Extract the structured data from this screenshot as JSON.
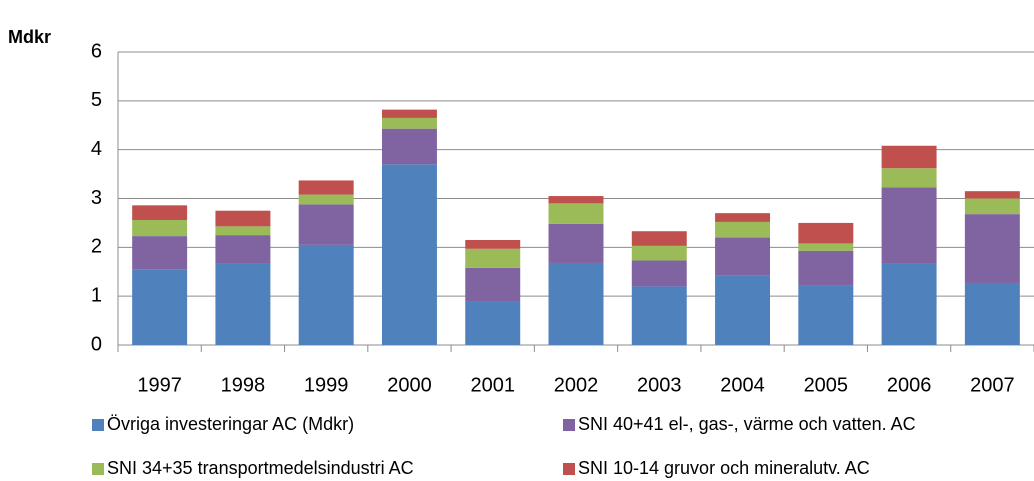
{
  "chart_data": {
    "type": "stacked_bar",
    "y_label": "Mdkr",
    "categories": [
      "1997",
      "1998",
      "1999",
      "2000",
      "2001",
      "2002",
      "2003",
      "2004",
      "2005",
      "2006",
      "2007"
    ],
    "series": [
      {
        "name": "Övriga investeringar AC (Mdkr)",
        "color": "#4f81bd",
        "values": [
          1.55,
          1.67,
          2.05,
          3.7,
          0.9,
          1.68,
          1.2,
          1.42,
          1.22,
          1.67,
          1.27
        ]
      },
      {
        "name": "SNI 40+41 el-, gas-, värme och vatten. AC",
        "color": "#8064a2",
        "values": [
          0.68,
          0.58,
          0.83,
          0.73,
          0.68,
          0.8,
          0.53,
          0.78,
          0.71,
          1.56,
          1.41
        ]
      },
      {
        "name": "SNI 34+35 transportmedelsindustri AC",
        "color": "#9bbb59",
        "values": [
          0.33,
          0.18,
          0.2,
          0.22,
          0.39,
          0.42,
          0.3,
          0.32,
          0.15,
          0.39,
          0.32
        ]
      },
      {
        "name": "SNI 10-14 gruvor och mineralutv. AC",
        "color": "#c0504d",
        "values": [
          0.3,
          0.32,
          0.29,
          0.17,
          0.18,
          0.15,
          0.3,
          0.18,
          0.42,
          0.46,
          0.15
        ]
      }
    ],
    "ylim": [
      0,
      6
    ],
    "yticks": [
      0,
      1,
      2,
      3,
      4,
      5,
      6
    ],
    "grid": true
  }
}
